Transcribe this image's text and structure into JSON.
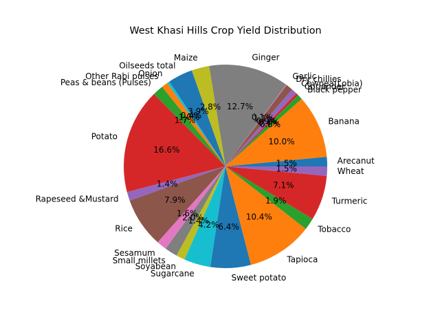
{
  "chart_data": {
    "type": "pie",
    "title": "West Khasi Hills Crop Yield Distribution",
    "start_angle_deg": 0,
    "direction": "counterclockwise",
    "slices": [
      {
        "label": "Arecanut",
        "value": 1.5,
        "pct": "1.5%",
        "color": "#1f77b4"
      },
      {
        "label": "Banana",
        "value": 10.0,
        "pct": "10.0%",
        "color": "#ff7f0e"
      },
      {
        "label": "Black pepper",
        "value": 0.8,
        "pct": "0.8%",
        "color": "#2ca02c"
      },
      {
        "label": "Coriander",
        "value": 0.4,
        "pct": "0.4%",
        "color": "#d62728"
      },
      {
        "label": "Cowpea(Lobia)",
        "value": 0.9,
        "pct": "0.9%",
        "color": "#9467bd"
      },
      {
        "label": "Dry chillies",
        "value": 1.1,
        "pct": "1.1%",
        "color": "#8c564b"
      },
      {
        "label": "Garlic",
        "value": 0.1,
        "pct": "0.1%",
        "color": "#e377c2"
      },
      {
        "label": "Ginger",
        "value": 12.7,
        "pct": "12.7%",
        "color": "#7f7f7f"
      },
      {
        "label": "Maize",
        "value": 2.8,
        "pct": "2.8%",
        "color": "#bcbd22"
      },
      {
        "label": "Oilseeds total",
        "value": 3.9,
        "pct": "3.9%",
        "color": "#1f77b4"
      },
      {
        "label": "Onion",
        "value": 0.4,
        "pct": "0.4%",
        "color": "#17becf"
      },
      {
        "label": "Other Rabi pulses",
        "value": 1.0,
        "pct": "1.0%",
        "color": "#ff7f0e"
      },
      {
        "label": "Peas & beans (Pulses)",
        "value": 1.7,
        "pct": "1.7%",
        "color": "#2ca02c"
      },
      {
        "label": "Potato",
        "value": 16.6,
        "pct": "16.6%",
        "color": "#d62728"
      },
      {
        "label": "Rapeseed &Mustard",
        "value": 1.4,
        "pct": "1.4%",
        "color": "#9467bd"
      },
      {
        "label": "Rice",
        "value": 7.9,
        "pct": "7.9%",
        "color": "#8c564b"
      },
      {
        "label": "Sesamum",
        "value": 1.6,
        "pct": "1.6%",
        "color": "#e377c2"
      },
      {
        "label": "Small millets",
        "value": 2.0,
        "pct": "2.0%",
        "color": "#7f7f7f"
      },
      {
        "label": "Soyabean",
        "value": 1.4,
        "pct": "1.4%",
        "color": "#bcbd22"
      },
      {
        "label": "Sugarcane",
        "value": 4.2,
        "pct": "4.2%",
        "color": "#17becf"
      },
      {
        "label": "Sweet potato",
        "value": 6.4,
        "pct": "6.4%",
        "color": "#1f77b4"
      },
      {
        "label": "Tapioca",
        "value": 10.4,
        "pct": "10.4%",
        "color": "#ff7f0e"
      },
      {
        "label": "Tobacco",
        "value": 1.9,
        "pct": "1.9%",
        "color": "#2ca02c"
      },
      {
        "label": "Turmeric",
        "value": 7.1,
        "pct": "7.1%",
        "color": "#d62728"
      },
      {
        "label": "Wheat",
        "value": 1.5,
        "pct": "1.5%",
        "color": "#9467bd"
      }
    ]
  }
}
